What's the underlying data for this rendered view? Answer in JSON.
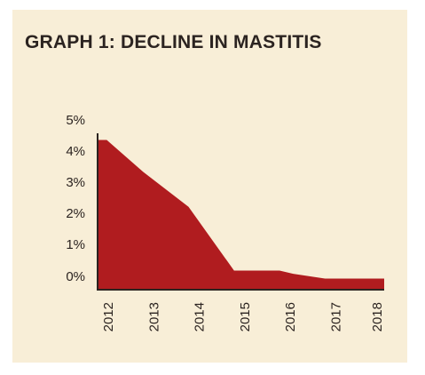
{
  "colors": {
    "panel": "#f8eed7",
    "area": "#b01c1f",
    "axis": "#2b2320",
    "text": "#2b2320"
  },
  "chart_data": {
    "type": "area",
    "title": "GRAPH 1: DECLINE IN MASTITIS",
    "xlabel": "",
    "ylabel": "",
    "x": [
      2012,
      2012.2,
      2013,
      2014,
      2015,
      2016,
      2016.3,
      2017,
      2017.1,
      2018,
      2018.3
    ],
    "values": [
      4.4,
      4.4,
      3.4,
      2.3,
      0.3,
      0.3,
      0.2,
      0.05,
      0.05,
      0.05,
      0.05
    ],
    "ylim": [
      -0.3,
      5
    ],
    "xlim": [
      2012,
      2018.3
    ],
    "x_tick_labels": [
      "2012",
      "2013",
      "2014",
      "2015",
      "2016",
      "2017",
      "2018"
    ],
    "y_tick_labels": [
      "5%",
      "4%",
      "3%",
      "2%",
      "1%",
      "0%"
    ],
    "grid": false,
    "legend": "none"
  }
}
